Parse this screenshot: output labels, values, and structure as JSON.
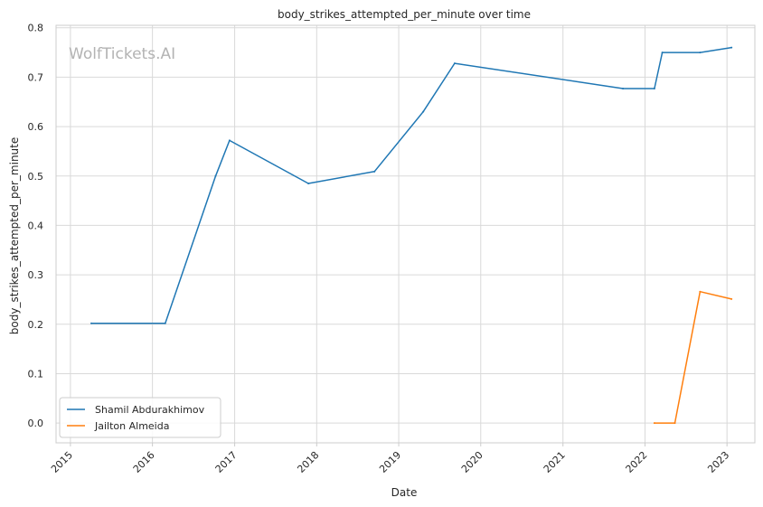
{
  "chart_data": {
    "type": "line",
    "title": "body_strikes_attempted_per_minute over time",
    "xlabel": "Date",
    "ylabel": "body_strikes_attempted_per_minute",
    "watermark": "WolfTickets.AI",
    "x_tick_labels": [
      "2015",
      "2016",
      "2017",
      "2018",
      "2019",
      "2020",
      "2021",
      "2022",
      "2023"
    ],
    "y_tick_labels": [
      "0.0",
      "0.1",
      "0.2",
      "0.3",
      "0.4",
      "0.5",
      "0.6",
      "0.7",
      "0.8"
    ],
    "xlim": [
      "2014-10-29",
      "2023-05-05"
    ],
    "ylim": [
      -0.04,
      0.805
    ],
    "grid": true,
    "legend_position": "lower-left",
    "series": [
      {
        "name": "Shamil Abdurakhimov",
        "color": "#1f77b4",
        "points": [
          {
            "x": "2015-04-04",
            "y": 0.202
          },
          {
            "x": "2016-02-27",
            "y": 0.202
          },
          {
            "x": "2016-10-08",
            "y": 0.5
          },
          {
            "x": "2016-12-09",
            "y": 0.572
          },
          {
            "x": "2017-11-25",
            "y": 0.485
          },
          {
            "x": "2018-09-15",
            "y": 0.509
          },
          {
            "x": "2019-04-20",
            "y": 0.63
          },
          {
            "x": "2019-09-07",
            "y": 0.728
          },
          {
            "x": "2021-09-25",
            "y": 0.677
          },
          {
            "x": "2022-02-12",
            "y": 0.677
          },
          {
            "x": "2022-03-19",
            "y": 0.75
          },
          {
            "x": "2022-09-03",
            "y": 0.75
          },
          {
            "x": "2023-01-21",
            "y": 0.76
          }
        ]
      },
      {
        "name": "Jailton Almeida",
        "color": "#ff7f0e",
        "points": [
          {
            "x": "2022-02-12",
            "y": 0.0
          },
          {
            "x": "2022-05-14",
            "y": 0.0
          },
          {
            "x": "2022-09-03",
            "y": 0.266
          },
          {
            "x": "2023-01-21",
            "y": 0.251
          }
        ]
      }
    ]
  }
}
